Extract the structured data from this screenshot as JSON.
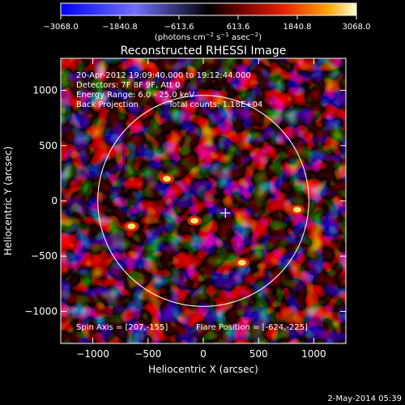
{
  "colorbar": {
    "ticks": [
      "−3068.0",
      "−1840.8",
      "−613.6",
      "613.6",
      "1840.8",
      "3068.0"
    ],
    "units_prefix": "(photons cm",
    "units_exp1": "−2",
    "units_mid1": " s",
    "units_exp2": "−1",
    "units_mid2": " asec",
    "units_exp3": "−2",
    "units_suffix": ")",
    "min": -3068.0,
    "max": 3068.0
  },
  "chart_data": {
    "type": "heatmap",
    "title": "Reconstructed RHESSI Image",
    "xlabel": "Heliocentric X (arcsec)",
    "ylabel": "Heliocentric Y (arcsec)",
    "xlim": [
      -1290,
      1290
    ],
    "ylim": [
      -1290,
      1290
    ],
    "xticks": [
      -1000,
      -500,
      0,
      500,
      1000
    ],
    "yticks": [
      -1000,
      -500,
      0,
      500,
      1000
    ],
    "xtick_labels": [
      "−1000",
      "−500",
      "0",
      "500",
      "1000"
    ],
    "ytick_labels": [
      "−1000",
      "−500",
      "0",
      "500",
      "1000"
    ],
    "solar_limb_radius": 955,
    "crosshair": [
      200,
      -110
    ],
    "value_range": [
      -3068.0,
      3068.0
    ],
    "bright_sources": [
      {
        "x": -650,
        "y": -230
      },
      {
        "x": -80,
        "y": -180
      },
      {
        "x": -330,
        "y": 200
      },
      {
        "x": 350,
        "y": -560
      },
      {
        "x": 850,
        "y": -80
      }
    ],
    "annotations": {
      "time": "20-Apr-2012 19:09:40.000 to 19:12:44.000",
      "detectors": "Detectors: 7F 8F 9F, Att 0",
      "energy": "Energy Range: 6.0 - 25.0 keV",
      "method": "Back Projection",
      "counts": "Total counts: 1.18E+04",
      "spin_axis": "Spin Axis = [207,-155]",
      "flare_position": "Flare Position = [-624,-225]"
    }
  },
  "footer": {
    "date": "2-May-2014 05:39"
  }
}
